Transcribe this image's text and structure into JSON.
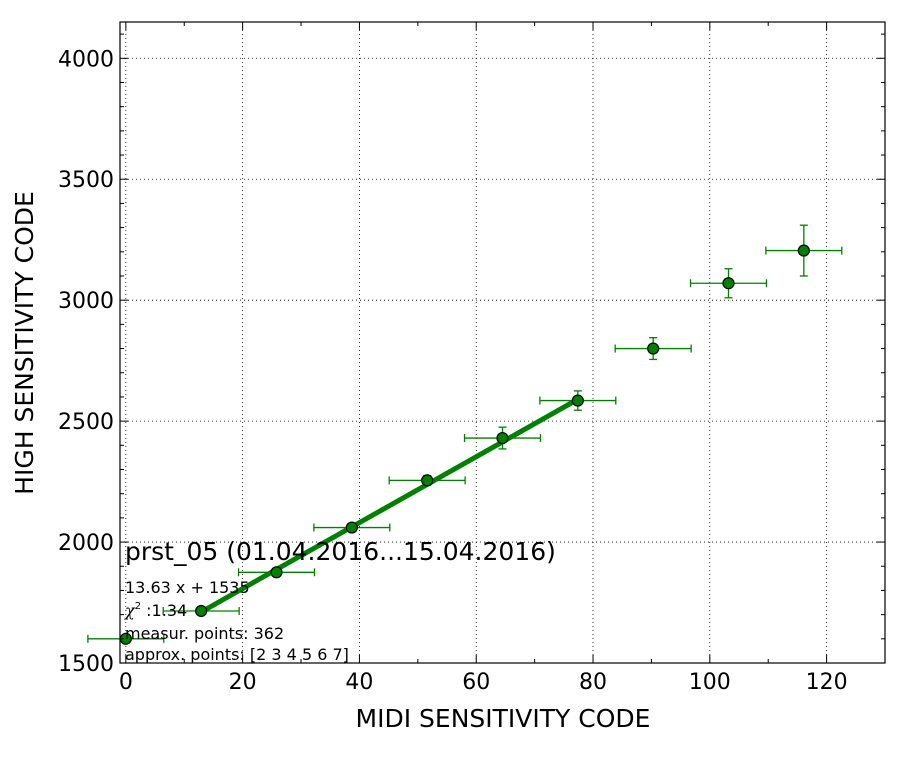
{
  "chart_data": {
    "type": "scatter",
    "xlabel": "MIDI SENSITIVITY CODE",
    "ylabel": "HIGH SENSITIVITY CODE",
    "xlim": [
      -1,
      130
    ],
    "ylim": [
      1500,
      4150
    ],
    "x_ticks": [
      0,
      20,
      40,
      60,
      80,
      100,
      120
    ],
    "y_ticks": [
      1500,
      2000,
      2500,
      3000,
      3500,
      4000
    ],
    "grid": true,
    "points": [
      {
        "x": 0,
        "y": 1600,
        "xerr": 6.5,
        "yerr": 0
      },
      {
        "x": 12.9,
        "y": 1715,
        "xerr": 6.5,
        "yerr": 8
      },
      {
        "x": 25.8,
        "y": 1875,
        "xerr": 6.5,
        "yerr": 10
      },
      {
        "x": 38.7,
        "y": 2060,
        "xerr": 6.5,
        "yerr": 15
      },
      {
        "x": 51.6,
        "y": 2255,
        "xerr": 6.5,
        "yerr": 20
      },
      {
        "x": 64.5,
        "y": 2430,
        "xerr": 6.5,
        "yerr": 45
      },
      {
        "x": 77.4,
        "y": 2585,
        "xerr": 6.5,
        "yerr": 40
      },
      {
        "x": 90.3,
        "y": 2800,
        "xerr": 6.5,
        "yerr": 45
      },
      {
        "x": 103.2,
        "y": 3070,
        "xerr": 6.5,
        "yerr": 60
      },
      {
        "x": 116.1,
        "y": 3205,
        "xerr": 6.5,
        "yerr": 105
      }
    ],
    "fit": {
      "slope": 13.63,
      "intercept": 1535,
      "x_range": [
        12.9,
        77.4
      ]
    },
    "colors": {
      "series": "#008000",
      "fit": "#008000",
      "grid": "#000000"
    },
    "annotation": {
      "title": "prst_05 (01.04.2016...15.04.2016)",
      "equation": "13.63 x + 1535",
      "chi_symbol": "χ",
      "chi_sup": "2",
      "chi_value": " :1.34",
      "measur": "measur. points: 362",
      "approx": "approx. points: [2 3 4 5 6 7]"
    }
  }
}
